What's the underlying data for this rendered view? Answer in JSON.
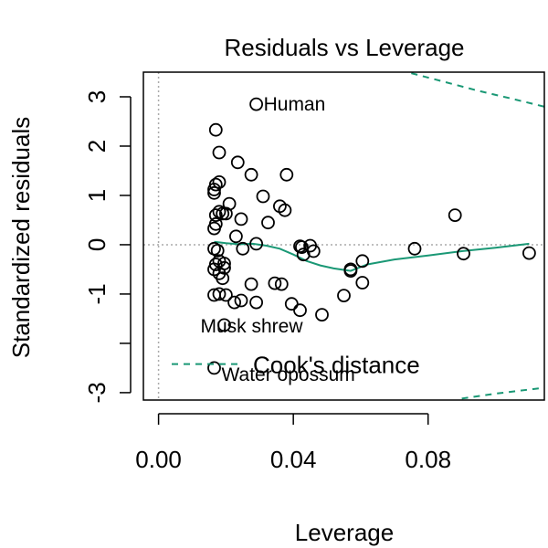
{
  "chart_data": {
    "type": "scatter",
    "title": "Residuals vs Leverage",
    "xlabel": "Leverage",
    "ylabel": "Standardized residuals",
    "xlim": [
      -0.0045,
      0.1145
    ],
    "ylim": [
      -3.15,
      3.5
    ],
    "x_ticks": [
      {
        "value": 0.0,
        "label": "0.00"
      },
      {
        "value": 0.04,
        "label": "0.04"
      },
      {
        "value": 0.08,
        "label": "0.08"
      }
    ],
    "y_ticks": [
      {
        "value": 3,
        "label": "3"
      },
      {
        "value": 2,
        "label": "2"
      },
      {
        "value": 1,
        "label": "1"
      },
      {
        "value": 0,
        "label": "0"
      },
      {
        "value": -1,
        "label": "-1"
      },
      {
        "value": -2,
        "label": ""
      },
      {
        "value": -3,
        "label": "-3"
      }
    ],
    "grid": false,
    "points": [
      {
        "x": 0.029,
        "y": 2.85
      },
      {
        "x": 0.017,
        "y": 2.33
      },
      {
        "x": 0.018,
        "y": 1.87
      },
      {
        "x": 0.0235,
        "y": 1.67
      },
      {
        "x": 0.0275,
        "y": 1.42
      },
      {
        "x": 0.038,
        "y": 1.42
      },
      {
        "x": 0.017,
        "y": 1.22
      },
      {
        "x": 0.018,
        "y": 1.27
      },
      {
        "x": 0.0165,
        "y": 1.05
      },
      {
        "x": 0.0165,
        "y": 1.12
      },
      {
        "x": 0.031,
        "y": 0.98
      },
      {
        "x": 0.021,
        "y": 0.83
      },
      {
        "x": 0.036,
        "y": 0.78
      },
      {
        "x": 0.0375,
        "y": 0.7
      },
      {
        "x": 0.019,
        "y": 0.63
      },
      {
        "x": 0.017,
        "y": 0.6
      },
      {
        "x": 0.018,
        "y": 0.67
      },
      {
        "x": 0.02,
        "y": 0.63
      },
      {
        "x": 0.0245,
        "y": 0.52
      },
      {
        "x": 0.0325,
        "y": 0.45
      },
      {
        "x": 0.0165,
        "y": 0.33
      },
      {
        "x": 0.017,
        "y": 0.42
      },
      {
        "x": 0.023,
        "y": 0.17
      },
      {
        "x": 0.088,
        "y": 0.6
      },
      {
        "x": 0.029,
        "y": 0.02
      },
      {
        "x": 0.0165,
        "y": -0.08
      },
      {
        "x": 0.0175,
        "y": -0.12
      },
      {
        "x": 0.025,
        "y": -0.08
      },
      {
        "x": 0.042,
        "y": -0.03
      },
      {
        "x": 0.0425,
        "y": -0.05
      },
      {
        "x": 0.045,
        "y": -0.02
      },
      {
        "x": 0.046,
        "y": -0.13
      },
      {
        "x": 0.043,
        "y": -0.2
      },
      {
        "x": 0.076,
        "y": -0.08
      },
      {
        "x": 0.0905,
        "y": -0.18
      },
      {
        "x": 0.11,
        "y": -0.17
      },
      {
        "x": 0.017,
        "y": -0.4
      },
      {
        "x": 0.018,
        "y": -0.33
      },
      {
        "x": 0.0195,
        "y": -0.38
      },
      {
        "x": 0.0195,
        "y": -0.47
      },
      {
        "x": 0.0165,
        "y": -0.5
      },
      {
        "x": 0.018,
        "y": -0.58
      },
      {
        "x": 0.019,
        "y": -0.68
      },
      {
        "x": 0.057,
        "y": -0.5
      },
      {
        "x": 0.057,
        "y": -0.53
      },
      {
        "x": 0.0605,
        "y": -0.33
      },
      {
        "x": 0.0605,
        "y": -0.77
      },
      {
        "x": 0.055,
        "y": -1.03
      },
      {
        "x": 0.0275,
        "y": -0.8
      },
      {
        "x": 0.0345,
        "y": -0.78
      },
      {
        "x": 0.0365,
        "y": -0.8
      },
      {
        "x": 0.0165,
        "y": -1.02
      },
      {
        "x": 0.018,
        "y": -1.0
      },
      {
        "x": 0.02,
        "y": -1.02
      },
      {
        "x": 0.0225,
        "y": -1.17
      },
      {
        "x": 0.0245,
        "y": -1.13
      },
      {
        "x": 0.029,
        "y": -1.17
      },
      {
        "x": 0.0395,
        "y": -1.2
      },
      {
        "x": 0.042,
        "y": -1.33
      },
      {
        "x": 0.0485,
        "y": -1.42
      },
      {
        "x": 0.0195,
        "y": -1.63
      },
      {
        "x": 0.0165,
        "y": -2.5
      }
    ],
    "point_labels": [
      {
        "x": 0.029,
        "y": 2.85,
        "text": "Human"
      },
      {
        "x": 0.0195,
        "y": -1.63,
        "text": "Musk shrew"
      },
      {
        "x": 0.0165,
        "y": -2.5,
        "text": "Water opossum"
      }
    ],
    "smoother": {
      "color": "#1a9875",
      "x": [
        0.0165,
        0.02,
        0.024,
        0.028,
        0.032,
        0.036,
        0.04,
        0.044,
        0.048,
        0.052,
        0.057,
        0.062,
        0.07,
        0.08,
        0.09,
        0.1,
        0.11
      ],
      "y": [
        0.06,
        0.03,
        0.01,
        0.02,
        -0.02,
        -0.08,
        -0.2,
        -0.33,
        -0.42,
        -0.48,
        -0.53,
        -0.4,
        -0.3,
        -0.22,
        -0.13,
        -0.06,
        0.02
      ]
    },
    "cooks_distance": {
      "label": "Cook's distance",
      "color": "#1a9875",
      "upper": {
        "x": [
          0.075,
          0.085,
          0.095,
          0.105,
          0.1145
        ],
        "y": [
          3.48,
          3.3,
          3.12,
          2.96,
          2.8
        ]
      },
      "lower": {
        "x": [
          0.09,
          0.1,
          0.1145
        ],
        "y": [
          -3.12,
          -3.02,
          -2.9
        ]
      },
      "legend_segment_y": -2.42
    }
  }
}
